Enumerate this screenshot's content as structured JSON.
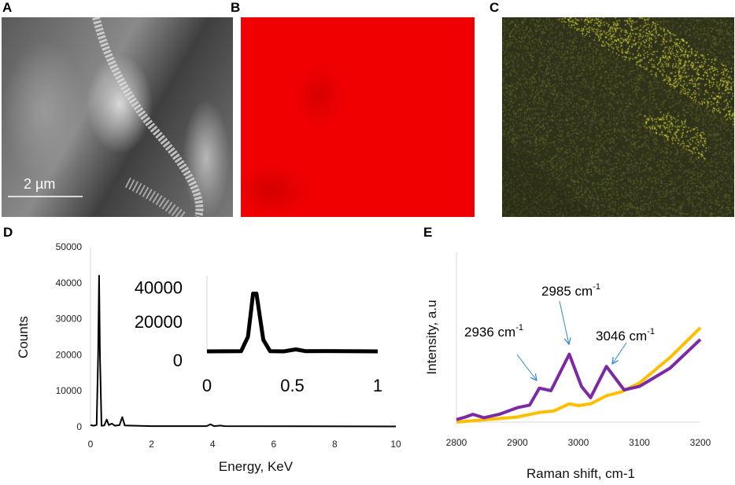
{
  "panels": {
    "a": "A",
    "b": "B",
    "c": "C",
    "d": "D",
    "e": "E"
  },
  "sem": {
    "scale_bar_label": "2 µm"
  },
  "colors": {
    "eds_map_b": "#ff0000",
    "eds_map_c_bg": "#2f321a",
    "eds_map_c_spots": "#e6e43a",
    "spectrum_d": "#000000",
    "series_purple": "#7b2aa3",
    "series_orange": "#ffbf00",
    "arrows": "#2f86d0"
  },
  "chart_data": [
    {
      "type": "line",
      "panel": "D",
      "xlabel": "Energy, KeV",
      "ylabel": "Counts",
      "xlim": [
        0,
        10
      ],
      "ylim": [
        0,
        50000
      ],
      "xticks": [
        "0",
        "2",
        "4",
        "6",
        "8",
        "10"
      ],
      "yticks": [
        "0",
        "10000",
        "20000",
        "30000",
        "40000",
        "50000"
      ],
      "grid": false,
      "series": [
        {
          "x": [
            0,
            0.1,
            0.2,
            0.25,
            0.28,
            0.31,
            0.36,
            0.45,
            0.53,
            0.6,
            0.7,
            0.8,
            0.95,
            1.04,
            1.12,
            2,
            3.8,
            3.93,
            4.05,
            4.25,
            4.4,
            10
          ],
          "y": [
            500,
            300,
            500,
            20000,
            42000,
            20000,
            300,
            400,
            2000,
            500,
            900,
            300,
            500,
            2700,
            400,
            200,
            200,
            700,
            200,
            350,
            200,
            100
          ]
        }
      ],
      "inset": {
        "xlim": [
          0,
          1
        ],
        "ylim": [
          0,
          50000
        ],
        "xticks": [
          "0",
          "0.5",
          "1"
        ],
        "yticks": [
          "0",
          "20000",
          "40000"
        ],
        "series": [
          {
            "x": [
              0,
              0.2,
              0.24,
              0.27,
              0.29,
              0.33,
              0.37,
              0.45,
              0.52,
              0.58,
              0.7,
              1
            ],
            "y": [
              500,
              600,
              10000,
              38000,
              38000,
              8000,
              600,
              500,
              1800,
              600,
              700,
              500
            ]
          }
        ]
      }
    },
    {
      "type": "line",
      "panel": "E",
      "xlabel": "Raman shift, cm-1",
      "ylabel": "Intensity, a.u",
      "xlim": [
        2800,
        3200
      ],
      "ylim": [
        0,
        100
      ],
      "xticks": [
        "2800",
        "2900",
        "3000",
        "3100",
        "3200"
      ],
      "grid": false,
      "series": [
        {
          "color": "purple",
          "x": [
            2800,
            2815,
            2827,
            2845,
            2870,
            2900,
            2920,
            2936,
            2955,
            2985,
            3005,
            3020,
            3046,
            3075,
            3100,
            3150,
            3200
          ],
          "y": [
            1.5,
            3,
            4.6,
            2.6,
            4.6,
            8.5,
            10,
            20,
            18.5,
            40,
            21,
            14.4,
            32.8,
            19,
            21,
            31.7,
            48.7
          ]
        },
        {
          "color": "orange",
          "x": [
            2800,
            2850,
            2900,
            2936,
            2960,
            2985,
            3000,
            3020,
            3046,
            3070,
            3100,
            3150,
            3200
          ],
          "y": [
            0,
            1.5,
            3,
            5.7,
            6.6,
            10.8,
            9.7,
            10.8,
            15.5,
            17.8,
            23,
            38,
            55.6
          ]
        }
      ],
      "annotations": [
        {
          "text": "2936 cm",
          "sup": "-1",
          "peak": 2936
        },
        {
          "text": "2985 cm",
          "sup": "-1",
          "peak": 2985
        },
        {
          "text": "3046 cm",
          "sup": "-1",
          "peak": 3046
        }
      ]
    }
  ]
}
